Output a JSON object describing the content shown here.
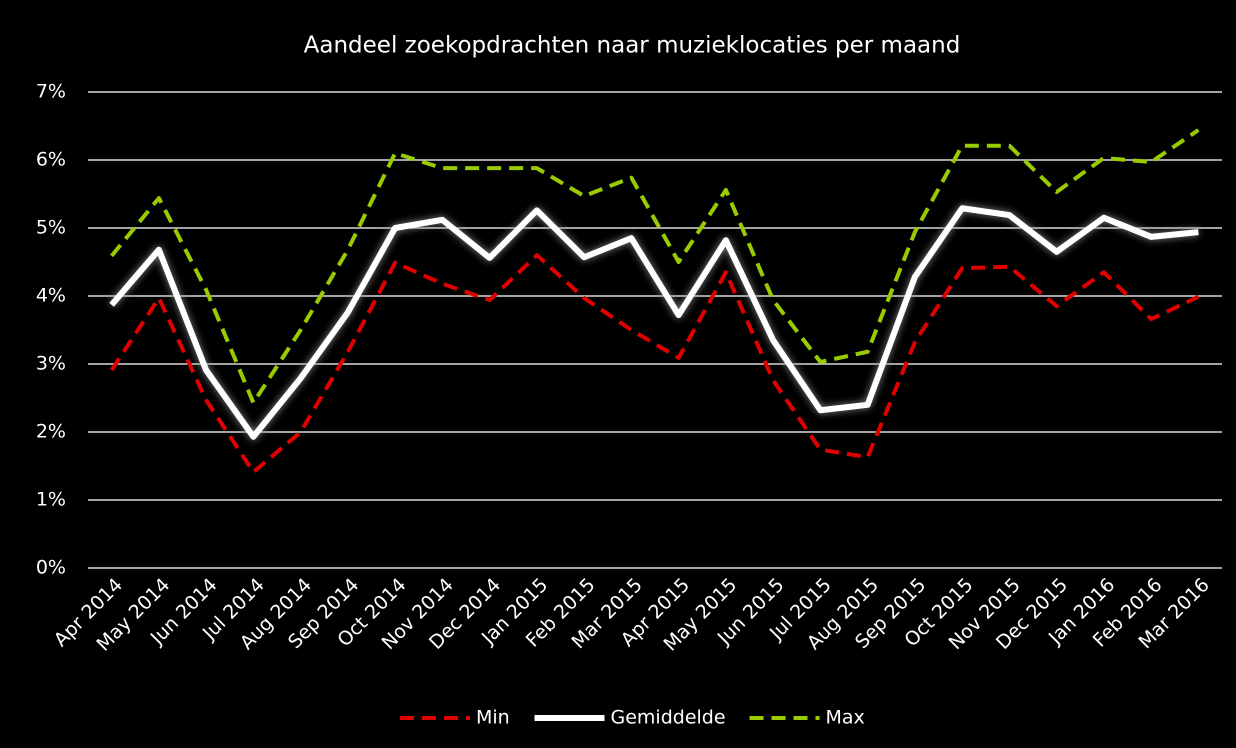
{
  "chart_data": {
    "type": "line",
    "title": "Aandeel zoekopdrachten naar muzieklocaties per maand",
    "categories": [
      "Apr 2014",
      "May 2014",
      "Jun 2014",
      "Jul 2014",
      "Aug 2014",
      "Sep 2014",
      "Oct 2014",
      "Nov 2014",
      "Dec 2014",
      "Jan 2015",
      "Feb 2015",
      "Mar 2015",
      "Apr 2015",
      "May 2015",
      "Jun 2015",
      "Jul 2015",
      "Aug 2015",
      "Sep 2015",
      "Oct 2015",
      "Nov 2015",
      "Dec 2015",
      "Jan 2016",
      "Feb 2016",
      "Mar 2016"
    ],
    "series": [
      {
        "name": "Min",
        "color": "#e00000",
        "style": "dashed",
        "values": [
          2.91,
          3.97,
          2.47,
          1.41,
          2.0,
          3.18,
          4.49,
          4.18,
          3.94,
          4.6,
          3.97,
          3.5,
          3.09,
          4.35,
          2.76,
          1.74,
          1.63,
          3.32,
          4.41,
          4.43,
          3.85,
          4.35,
          3.66,
          3.99
        ]
      },
      {
        "name": "Gemiddelde",
        "color": "#ffffff",
        "style": "solid",
        "values": [
          3.87,
          4.68,
          2.91,
          1.93,
          2.79,
          3.76,
          5.0,
          5.12,
          4.56,
          5.26,
          4.57,
          4.85,
          3.72,
          4.82,
          3.35,
          2.32,
          2.4,
          4.28,
          5.29,
          5.19,
          4.65,
          5.15,
          4.87,
          4.94
        ]
      },
      {
        "name": "Max",
        "color": "#99cc00",
        "style": "dashed",
        "values": [
          4.59,
          5.44,
          4.09,
          2.43,
          3.5,
          4.68,
          6.1,
          5.88,
          5.88,
          5.88,
          5.47,
          5.74,
          4.5,
          5.56,
          3.94,
          3.03,
          3.18,
          4.94,
          6.21,
          6.21,
          5.53,
          6.03,
          5.97,
          6.44
        ]
      }
    ],
    "ylim": [
      0,
      7
    ],
    "yticks": [
      {
        "value": 0,
        "label": "0%"
      },
      {
        "value": 1,
        "label": "1%"
      },
      {
        "value": 2,
        "label": "2%"
      },
      {
        "value": 3,
        "label": "3%"
      },
      {
        "value": 4,
        "label": "4%"
      },
      {
        "value": 5,
        "label": "5%"
      },
      {
        "value": 6,
        "label": "6%"
      },
      {
        "value": 7,
        "label": "7%"
      }
    ],
    "grid": true,
    "legend": "bottom"
  }
}
